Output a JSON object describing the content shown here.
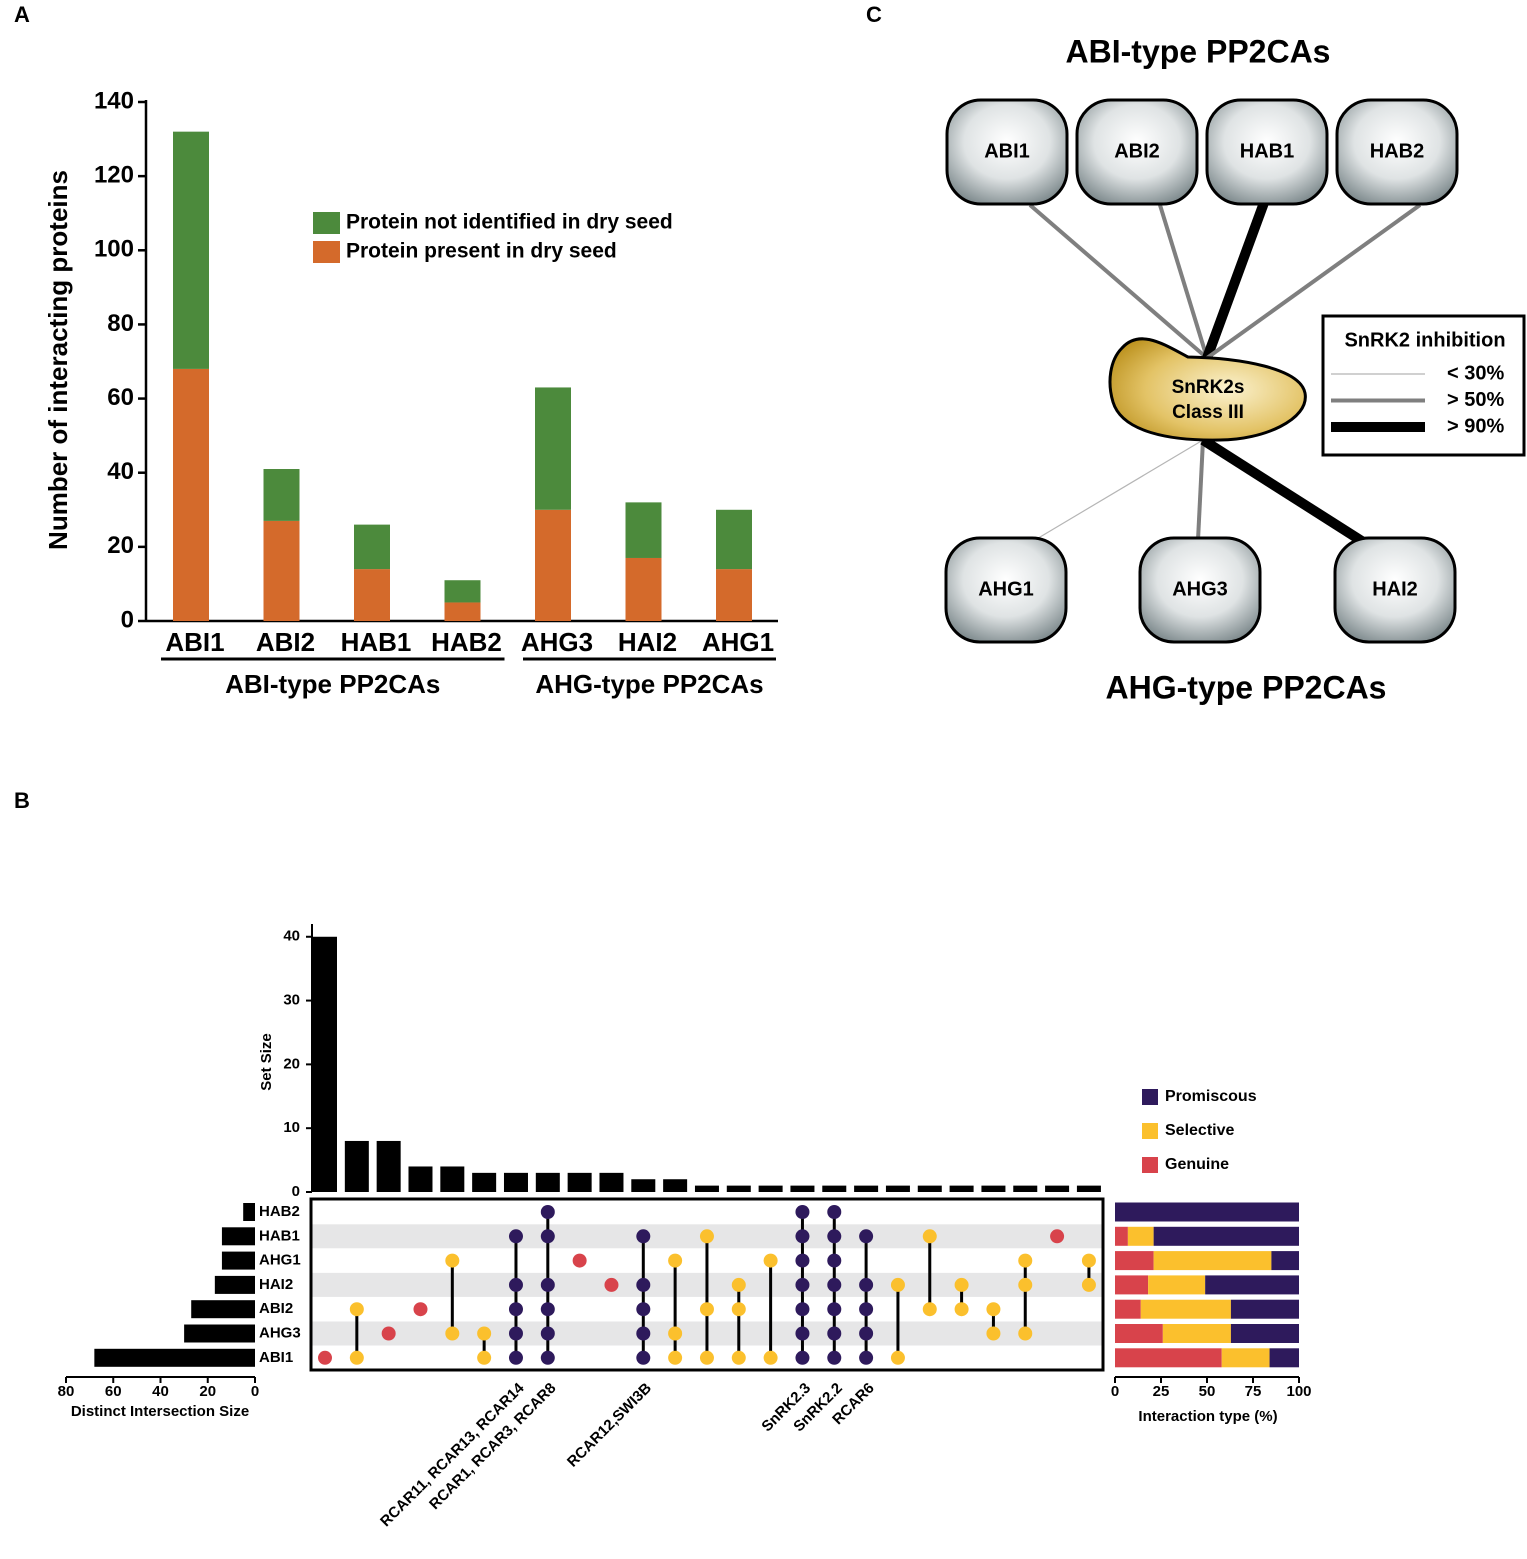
{
  "chart_data": [
    {
      "type": "bar",
      "panel": "A",
      "stacked": true,
      "ylabel": "Number of interacting proteins",
      "categories": [
        "ABI1",
        "ABI2",
        "HAB1",
        "HAB2",
        "AHG3",
        "HAI2",
        "AHG1"
      ],
      "groups": [
        {
          "name": "ABI-type  PP2CAs",
          "categories": [
            "ABI1",
            "ABI2",
            "HAB1",
            "HAB2"
          ]
        },
        {
          "name": "AHG-type  PP2CAs",
          "categories": [
            "AHG3",
            "HAI2",
            "AHG1"
          ]
        }
      ],
      "series": [
        {
          "name": "Protein present in dry seed",
          "color": "#d46a2b",
          "values": [
            68,
            27,
            14,
            5,
            30,
            17,
            14
          ]
        },
        {
          "name": "Protein not identified in dry seed",
          "color": "#4c8a3c",
          "values": [
            64,
            14,
            12,
            6,
            33,
            15,
            16
          ]
        }
      ],
      "ylim": [
        0,
        140
      ],
      "yticks": [
        0,
        20,
        40,
        60,
        80,
        100,
        120,
        140
      ]
    },
    {
      "type": "upset",
      "panel": "B",
      "sets": [
        "HAB2",
        "HAB1",
        "AHG1",
        "HAI2",
        "ABI2",
        "AHG3",
        "ABI1"
      ],
      "intersections": {
        "ylabel": "Set Size",
        "ylim": [
          0,
          42
        ],
        "yticks": [
          0,
          10,
          20,
          30,
          40
        ],
        "color": "#000000",
        "values": [
          40,
          8,
          8,
          4,
          4,
          3,
          3,
          3,
          3,
          3,
          2,
          2,
          1,
          1,
          1,
          1,
          1,
          1,
          1,
          1,
          1,
          1,
          1,
          1,
          1
        ],
        "members": [
          [
            "ABI1"
          ],
          [
            "ABI2",
            "ABI1"
          ],
          [
            "AHG3"
          ],
          [
            "ABI2"
          ],
          [
            "AHG1",
            "AHG3"
          ],
          [
            "AHG3",
            "ABI1"
          ],
          [
            "HAB1",
            "HAI2",
            "ABI2",
            "AHG3",
            "ABI1"
          ],
          [
            "HAB2",
            "HAB1",
            "HAI2",
            "ABI2",
            "AHG3",
            "ABI1"
          ],
          [
            "AHG1"
          ],
          [
            "HAI2"
          ],
          [
            "HAB1",
            "HAI2",
            "ABI2",
            "AHG3",
            "ABI1"
          ],
          [
            "AHG1",
            "AHG3",
            "ABI1"
          ],
          [
            "HAB1",
            "ABI2",
            "ABI1"
          ],
          [
            "HAI2",
            "ABI2",
            "ABI1"
          ],
          [
            "AHG1",
            "ABI1"
          ],
          [
            "HAB2",
            "HAB1",
            "AHG1",
            "HAI2",
            "ABI2",
            "AHG3",
            "ABI1"
          ],
          [
            "HAB2",
            "HAB1",
            "AHG1",
            "HAI2",
            "ABI2",
            "AHG3",
            "ABI1"
          ],
          [
            "HAB1",
            "HAI2",
            "ABI2",
            "AHG3",
            "ABI1"
          ],
          [
            "HAI2",
            "ABI1"
          ],
          [
            "HAB1",
            "ABI2"
          ],
          [
            "HAI2",
            "ABI2"
          ],
          [
            "ABI2",
            "AHG3"
          ],
          [
            "AHG1",
            "HAI2",
            "AHG3"
          ],
          [
            "HAB1"
          ],
          [
            "AHG1",
            "HAI2"
          ]
        ],
        "kinds": [
          "Genuine",
          "Selective",
          "Genuine",
          "Genuine",
          "Selective",
          "Selective",
          "Promiscous",
          "Promiscous",
          "Genuine",
          "Genuine",
          "Promiscous",
          "Selective",
          "Selective",
          "Selective",
          "Selective",
          "Promiscous",
          "Promiscous",
          "Promiscous",
          "Selective",
          "Selective",
          "Selective",
          "Selective",
          "Selective",
          "Genuine",
          "Selective"
        ],
        "labels": [
          null,
          null,
          null,
          null,
          null,
          null,
          "RCAR11, RCAR13, RCAR14",
          "RCAR1, RCAR3, RCAR8",
          null,
          null,
          "RCAR12,SWI3B",
          null,
          null,
          null,
          null,
          "SnRK2.3",
          "SnRK2.2",
          "RCAR6",
          null,
          null,
          null,
          null,
          null,
          null,
          null
        ]
      },
      "set_sizes": {
        "xlabel": "Distinct Intersection Size",
        "xlim": [
          80,
          0
        ],
        "xticks": [
          80,
          60,
          40,
          20,
          0
        ],
        "color": "#000000",
        "values": [
          5,
          14,
          14,
          17,
          27,
          30,
          68
        ]
      },
      "interaction_types": {
        "xlabel": "Interaction type (%)",
        "xlim": [
          0,
          100
        ],
        "xticks": [
          0,
          25,
          50,
          75,
          100
        ],
        "series": [
          {
            "name": "Genuine",
            "color": "#d8434b",
            "values": [
              0,
              7,
              21,
              18,
              14,
              26,
              58
            ]
          },
          {
            "name": "Selective",
            "color": "#fbc02d",
            "values": [
              0,
              14,
              64,
              31,
              49,
              37,
              26
            ]
          },
          {
            "name": "Promiscous",
            "color": "#2e1a5c",
            "values": [
              100,
              79,
              15,
              51,
              37,
              37,
              16
            ]
          }
        ]
      }
    }
  ],
  "diagram": {
    "panel": "C",
    "top_title": "ABI-type PP2CAs",
    "bottom_title": "AHG-type PP2CAs",
    "center": [
      "SnRK2s",
      "Class III"
    ],
    "top_nodes": [
      {
        "label": "ABI1",
        "inhibition": "> 50%"
      },
      {
        "label": "ABI2",
        "inhibition": "> 50%"
      },
      {
        "label": "HAB1",
        "inhibition": "> 90%"
      },
      {
        "label": "HAB2",
        "inhibition": "> 50%"
      }
    ],
    "bottom_nodes": [
      {
        "label": "AHG1",
        "inhibition": "< 30%"
      },
      {
        "label": "AHG3",
        "inhibition": "> 50%"
      },
      {
        "label": "HAI2",
        "inhibition": "> 90%"
      }
    ],
    "legend": {
      "title": "SnRK2 inhibition",
      "levels": [
        "< 30%",
        "> 50%",
        "> 90%"
      ]
    }
  }
}
